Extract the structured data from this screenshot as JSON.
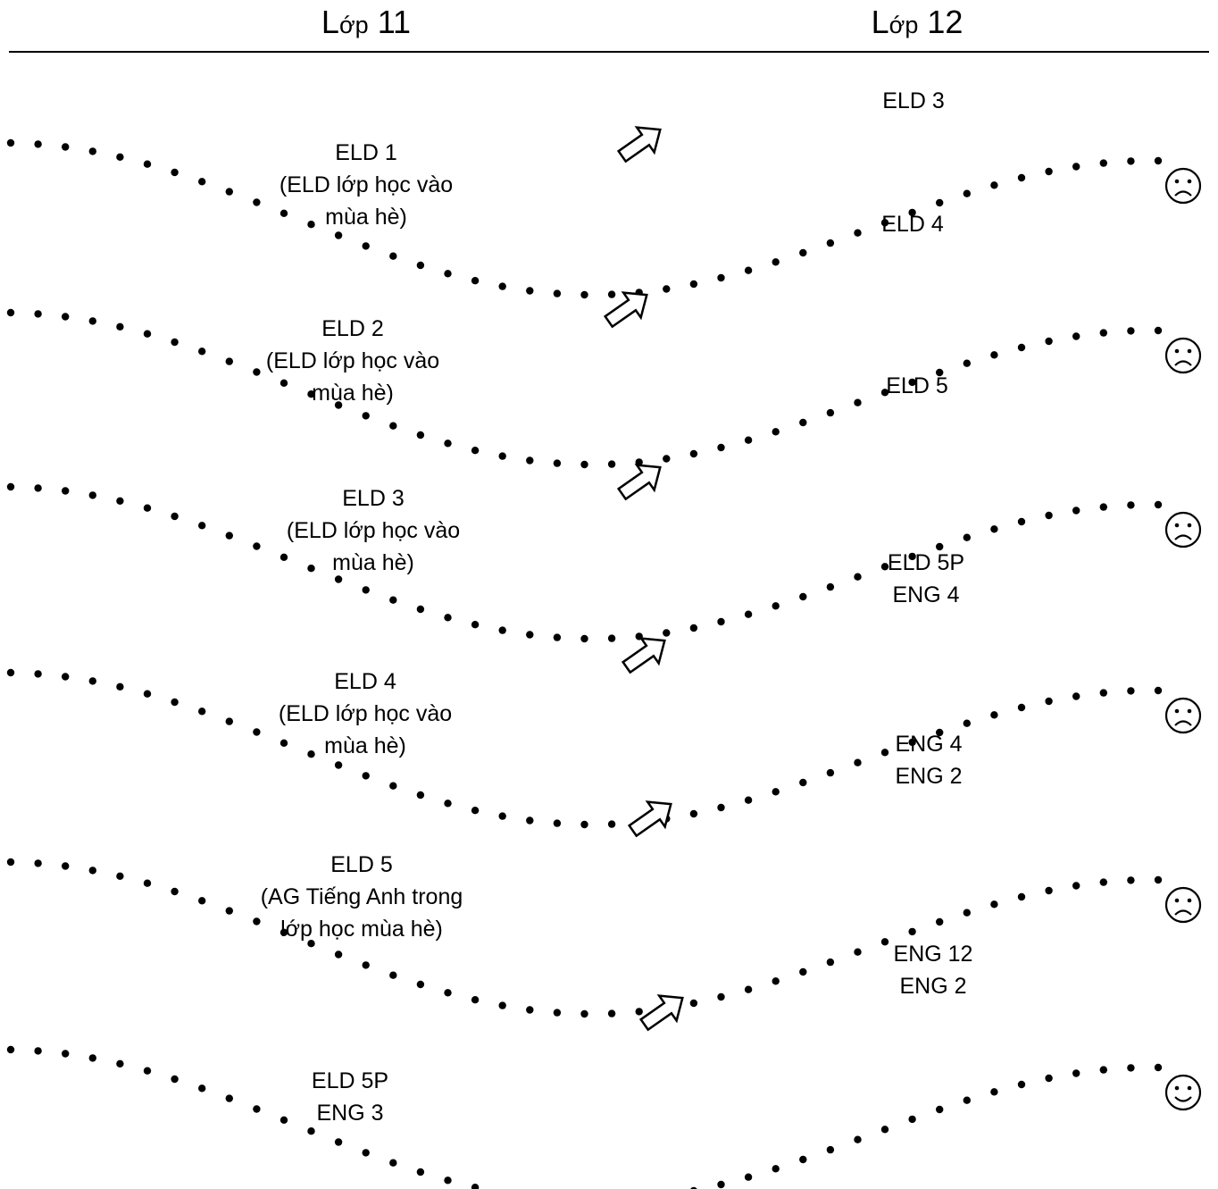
{
  "headers": {
    "left_prefix": "L",
    "left_small": "ớp",
    "left_number": " 11",
    "right_prefix": "L",
    "right_small": "ớp",
    "right_number": " 12"
  },
  "rows": [
    {
      "left_lines": [
        "ELD 1",
        "(ELD lớp học vào",
        "mùa hè)"
      ],
      "right_lines": [
        "ELD 3"
      ],
      "face": "sad-face-icon"
    },
    {
      "left_lines": [
        "ELD 2",
        "(ELD lớp học vào",
        "mùa hè)"
      ],
      "right_lines": [
        "ELD 4"
      ],
      "face": "sad-face-icon"
    },
    {
      "left_lines": [
        "ELD 3",
        "(ELD lớp học vào",
        "mùa hè)"
      ],
      "right_lines": [
        "ELD 5"
      ],
      "face": "sad-face-icon"
    },
    {
      "left_lines": [
        "ELD 4",
        "(ELD lớp học vào",
        "mùa hè)"
      ],
      "right_lines": [
        "ELD 5P",
        "ENG 4"
      ],
      "face": "sad-face-icon"
    },
    {
      "left_lines": [
        "ELD 5",
        "(AG Tiếng Anh trong",
        "lớp học mùa hè)"
      ],
      "right_lines": [
        "ENG 4",
        "ENG 2"
      ],
      "face": "sad-face-icon"
    },
    {
      "left_lines": [
        "ELD 5P",
        "ENG 3"
      ],
      "right_lines": [
        "ENG 12",
        "ENG 2"
      ],
      "face": "smiley-face-icon"
    }
  ],
  "arrow_icon": "up-right-arrow-icon",
  "colors": {
    "line": "#000000",
    "background": "#ffffff"
  }
}
